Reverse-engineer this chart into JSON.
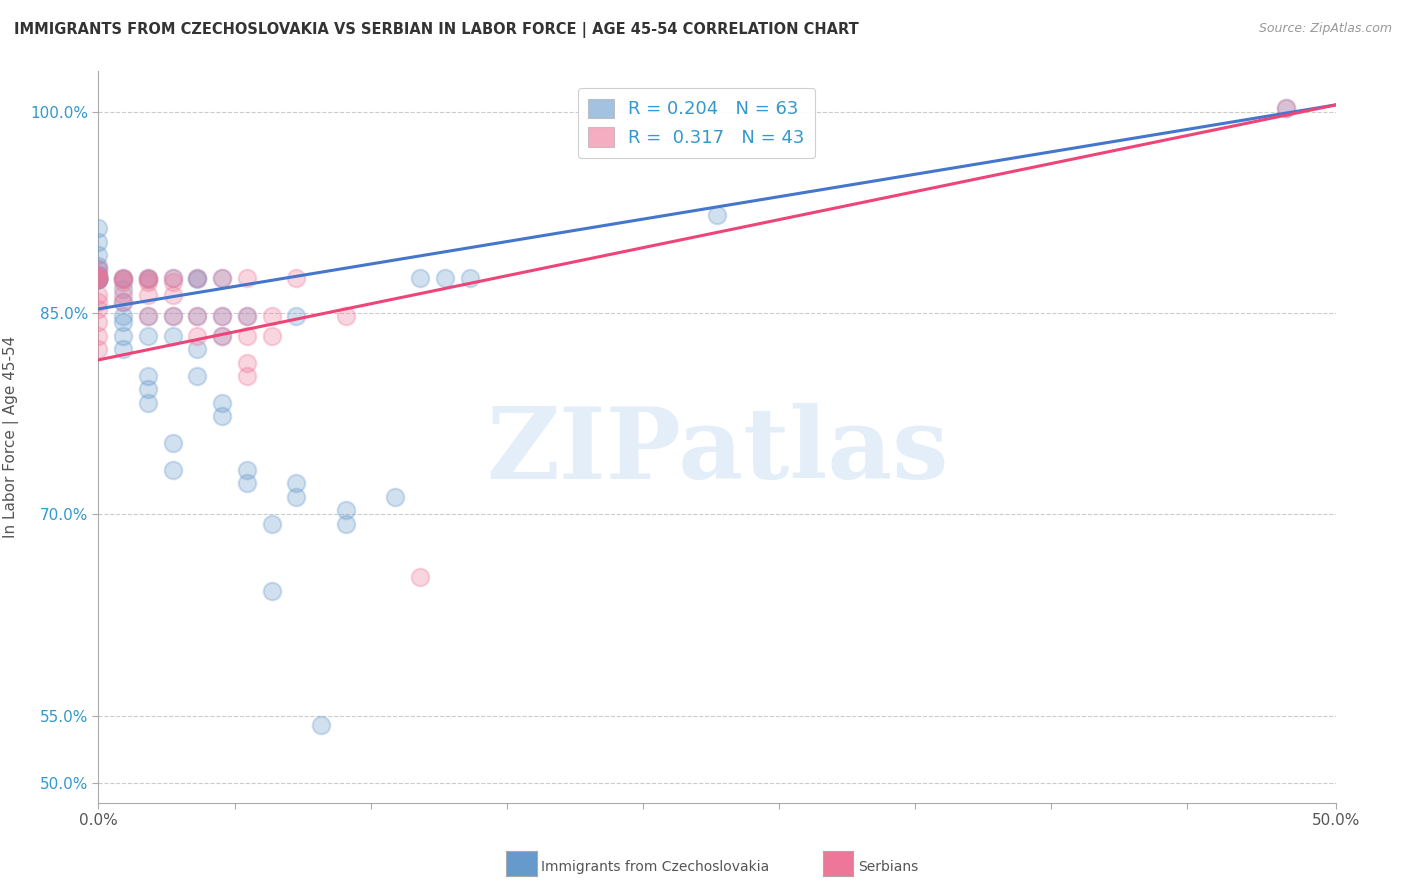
{
  "title": "IMMIGRANTS FROM CZECHOSLOVAKIA VS SERBIAN IN LABOR FORCE | AGE 45-54 CORRELATION CHART",
  "source": "Source: ZipAtlas.com",
  "ylabel": "In Labor Force | Age 45-54",
  "xlim": [
    0.0,
    0.5
  ],
  "ylim": [
    0.485,
    1.03
  ],
  "ytick_labels": [
    "50.0%",
    "55.0%",
    "70.0%",
    "85.0%",
    "100.0%"
  ],
  "ytick_values": [
    0.5,
    0.55,
    0.7,
    0.85,
    1.0
  ],
  "xtick_labels": [
    "0.0%",
    "",
    "",
    "",
    "",
    "",
    "",
    "",
    "",
    "50.0%"
  ],
  "xtick_values": [
    0.0,
    0.055,
    0.11,
    0.165,
    0.22,
    0.275,
    0.33,
    0.385,
    0.44,
    0.5
  ],
  "grid_color": "#cccccc",
  "background_color": "#ffffff",
  "blue_color": "#6699cc",
  "pink_color": "#ee7799",
  "trendline_blue": "#4477cc",
  "trendline_pink": "#ee4477",
  "legend_R_blue": "0.204",
  "legend_N_blue": "63",
  "legend_R_pink": "0.317",
  "legend_N_pink": "43",
  "blue_line_x0": 0.0,
  "blue_line_x1": 0.5,
  "blue_line_y0": 0.853,
  "blue_line_y1": 1.005,
  "pink_line_x0": 0.0,
  "pink_line_x1": 0.5,
  "pink_line_y0": 0.815,
  "pink_line_y1": 1.005,
  "blue_scatter_x": [
    0.0,
    0.0,
    0.0,
    0.0,
    0.0,
    0.0,
    0.0,
    0.0,
    0.0,
    0.0,
    0.0,
    0.0,
    0.0,
    0.0,
    0.0,
    0.0,
    0.01,
    0.01,
    0.01,
    0.01,
    0.01,
    0.01,
    0.01,
    0.01,
    0.02,
    0.02,
    0.02,
    0.02,
    0.02,
    0.02,
    0.02,
    0.03,
    0.03,
    0.03,
    0.03,
    0.03,
    0.04,
    0.04,
    0.04,
    0.04,
    0.04,
    0.05,
    0.05,
    0.05,
    0.05,
    0.05,
    0.06,
    0.06,
    0.06,
    0.07,
    0.07,
    0.08,
    0.08,
    0.08,
    0.09,
    0.1,
    0.1,
    0.12,
    0.13,
    0.14,
    0.15,
    0.25,
    0.48
  ],
  "blue_scatter_y": [
    0.885,
    0.883,
    0.878,
    0.876,
    0.875,
    0.875,
    0.875,
    0.875,
    0.875,
    0.875,
    0.876,
    0.878,
    0.893,
    0.903,
    0.913,
    0.875,
    0.843,
    0.833,
    0.823,
    0.848,
    0.858,
    0.868,
    0.876,
    0.875,
    0.783,
    0.793,
    0.803,
    0.833,
    0.848,
    0.876,
    0.875,
    0.733,
    0.753,
    0.833,
    0.848,
    0.876,
    0.803,
    0.823,
    0.848,
    0.876,
    0.875,
    0.773,
    0.783,
    0.833,
    0.848,
    0.876,
    0.723,
    0.733,
    0.848,
    0.643,
    0.693,
    0.713,
    0.723,
    0.848,
    0.543,
    0.693,
    0.703,
    0.713,
    0.876,
    0.876,
    0.876,
    0.923,
    1.003
  ],
  "pink_scatter_x": [
    0.0,
    0.0,
    0.0,
    0.0,
    0.0,
    0.0,
    0.0,
    0.0,
    0.0,
    0.0,
    0.0,
    0.0,
    0.01,
    0.01,
    0.01,
    0.01,
    0.01,
    0.02,
    0.02,
    0.02,
    0.02,
    0.02,
    0.03,
    0.03,
    0.03,
    0.03,
    0.04,
    0.04,
    0.04,
    0.05,
    0.05,
    0.05,
    0.06,
    0.06,
    0.06,
    0.06,
    0.06,
    0.07,
    0.07,
    0.08,
    0.1,
    0.13,
    0.48
  ],
  "pink_scatter_y": [
    0.883,
    0.878,
    0.876,
    0.875,
    0.875,
    0.863,
    0.858,
    0.853,
    0.843,
    0.833,
    0.823,
    0.876,
    0.876,
    0.875,
    0.873,
    0.863,
    0.858,
    0.876,
    0.875,
    0.873,
    0.863,
    0.848,
    0.876,
    0.873,
    0.863,
    0.848,
    0.848,
    0.833,
    0.876,
    0.876,
    0.848,
    0.833,
    0.876,
    0.848,
    0.833,
    0.813,
    0.803,
    0.848,
    0.833,
    0.876,
    0.848,
    0.653,
    1.003
  ]
}
